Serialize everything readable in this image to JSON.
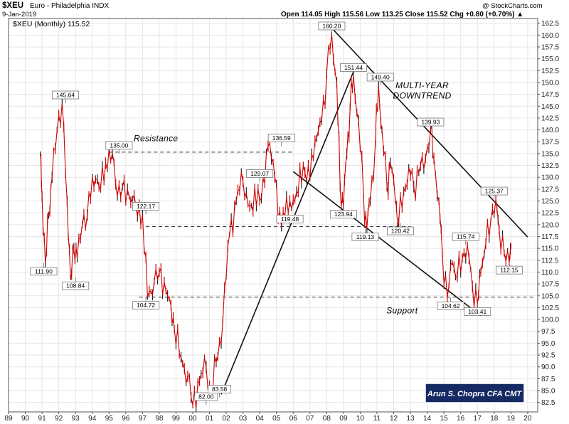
{
  "header": {
    "symbol": "$XEU",
    "name": "Euro - Philadelphia INDX",
    "date": "9-Jan-2019",
    "ohlc": "Open 114.05  High 115.56  Low 113.25  Close 115.52  Chg +0.80 (+0.70%) ▲",
    "copyright": "@ StockCharts.com",
    "legend": "$XEU (Monthly) 115.52"
  },
  "signature": "Arun S. Chopra CFA CMT",
  "chart_data": {
    "type": "line",
    "title": "$XEU Euro - Philadelphia INDX",
    "series": [
      {
        "name": "$XEU (Monthly)",
        "x": [
          1990.9,
          1991.0,
          1991.2,
          1991.4,
          1991.6,
          1991.9,
          1992.2,
          1992.5,
          1992.7,
          1992.9,
          1993.1,
          1993.4,
          1993.7,
          1994.0,
          1994.4,
          1994.8,
          1995.2,
          1995.5,
          1995.8,
          1996.2,
          1996.6,
          1997.0,
          1997.3,
          1997.7,
          1998.0,
          1998.4,
          1998.7,
          1998.9,
          1999.3,
          1999.7,
          2000.0,
          2000.4,
          2000.8,
          2001.1,
          2001.4,
          2001.8,
          2002.2,
          2002.6,
          2003.0,
          2003.5,
          2004.0,
          2004.5,
          2004.9,
          2005.3,
          2005.8,
          2006.2,
          2006.7,
          2007.2,
          2007.7,
          2008.0,
          2008.3,
          2008.6,
          2008.8,
          2009.0,
          2009.2,
          2009.4,
          2009.6,
          2009.9,
          2010.2,
          2010.4,
          2010.6,
          2010.9,
          2011.1,
          2011.3,
          2011.6,
          2011.8,
          2012.1,
          2012.3,
          2012.6,
          2012.9,
          2013.2,
          2013.5,
          2013.9,
          2014.2,
          2014.4,
          2014.7,
          2014.9,
          2015.2,
          2015.5,
          2015.8,
          2016.1,
          2016.4,
          2016.7,
          2017.0,
          2017.2,
          2017.5,
          2017.8,
          2018.1,
          2018.3,
          2018.6,
          2018.9,
          2019.0
        ],
        "values": [
          135.0,
          126.0,
          111.9,
          122.0,
          130.0,
          140.0,
          145.64,
          125.0,
          108.84,
          115.0,
          113.0,
          120.0,
          122.0,
          130.0,
          128.0,
          133.0,
          135.0,
          126.0,
          128.0,
          126.0,
          124.0,
          122.17,
          104.72,
          108.0,
          110.0,
          106.0,
          103.0,
          98.0,
          92.0,
          88.0,
          82.0,
          87.0,
          90.0,
          83.58,
          91.0,
          100.0,
          118.0,
          125.0,
          129.07,
          124.0,
          125.0,
          136.59,
          130.0,
          119.48,
          125.0,
          127.0,
          131.0,
          134.0,
          142.0,
          152.0,
          160.2,
          150.0,
          128.0,
          123.94,
          135.0,
          145.0,
          151.44,
          142.0,
          126.0,
          119.13,
          125.0,
          137.0,
          149.4,
          140.0,
          128.0,
          133.0,
          125.0,
          120.42,
          127.0,
          132.0,
          128.0,
          131.0,
          134.0,
          139.93,
          134.0,
          125.0,
          114.0,
          104.62,
          112.0,
          109.0,
          113.0,
          115.74,
          107.0,
          103.41,
          110.0,
          116.0,
          121.0,
          125.37,
          119.0,
          114.0,
          112.15,
          115.52
        ],
        "color": "#cc0000"
      }
    ],
    "peak_labels": [
      {
        "x": 1991.1,
        "y": 111.9,
        "label": "111.90"
      },
      {
        "x": 1992.4,
        "y": 145.64,
        "label": "145.64"
      },
      {
        "x": 1993.0,
        "y": 108.84,
        "label": "108.84"
      },
      {
        "x": 1995.6,
        "y": 135.0,
        "label": "135.00"
      },
      {
        "x": 1997.2,
        "y": 122.17,
        "label": "122.17"
      },
      {
        "x": 1997.2,
        "y": 104.72,
        "label": "104.72"
      },
      {
        "x": 2000.8,
        "y": 82.0,
        "label": "82.00"
      },
      {
        "x": 2001.6,
        "y": 83.58,
        "label": "83.58"
      },
      {
        "x": 2004.0,
        "y": 129.07,
        "label": "129.07"
      },
      {
        "x": 2005.3,
        "y": 136.59,
        "label": "136.59"
      },
      {
        "x": 2005.8,
        "y": 119.48,
        "label": "119.48"
      },
      {
        "x": 2008.3,
        "y": 160.2,
        "label": "160.20"
      },
      {
        "x": 2009.0,
        "y": 123.94,
        "label": "123.94"
      },
      {
        "x": 2009.6,
        "y": 151.44,
        "label": "151.44"
      },
      {
        "x": 2010.3,
        "y": 119.13,
        "label": "119.13"
      },
      {
        "x": 2011.2,
        "y": 149.4,
        "label": "149.40"
      },
      {
        "x": 2012.4,
        "y": 120.42,
        "label": "120.42"
      },
      {
        "x": 2014.2,
        "y": 139.93,
        "label": "139.93"
      },
      {
        "x": 2015.4,
        "y": 104.62,
        "label": "104.62"
      },
      {
        "x": 2016.3,
        "y": 115.74,
        "label": "115.74"
      },
      {
        "x": 2017.0,
        "y": 103.41,
        "label": "103.41"
      },
      {
        "x": 2018.0,
        "y": 125.37,
        "label": "125.37"
      },
      {
        "x": 2018.9,
        "y": 112.15,
        "label": "112.15"
      }
    ],
    "annotations": [
      {
        "text": "Resistance",
        "x": 1997.8,
        "y": 137.6
      },
      {
        "text": "MULTI-YEAR",
        "x": 2013.7,
        "y": 148.8
      },
      {
        "text": "DOWNTREND",
        "x": 2013.7,
        "y": 146.6
      },
      {
        "text": "Support",
        "x": 2012.5,
        "y": 101.3
      }
    ],
    "trendlines": [
      {
        "kind": "solid",
        "x1": 2001.7,
        "y1": 84.2,
        "x2": 2009.6,
        "y2": 152.3
      },
      {
        "kind": "solid",
        "x1": 2008.3,
        "y1": 161.5,
        "x2": 2020.0,
        "y2": 117.4
      },
      {
        "kind": "solid",
        "x1": 2006.0,
        "y1": 131.2,
        "x2": 2017.2,
        "y2": 100.8
      },
      {
        "kind": "dashed",
        "x1": 1995.0,
        "y1": 135.3,
        "x2": 2006.0,
        "y2": 135.3
      },
      {
        "kind": "dashed",
        "x1": 1997.2,
        "y1": 119.6,
        "x2": 2013.0,
        "y2": 119.6
      },
      {
        "kind": "dashed",
        "x1": 1996.8,
        "y1": 104.7,
        "x2": 2020.5,
        "y2": 104.7
      }
    ],
    "x_ticks": [
      "89",
      "90",
      "91",
      "92",
      "93",
      "94",
      "95",
      "96",
      "97",
      "98",
      "99",
      "00",
      "01",
      "02",
      "03",
      "04",
      "05",
      "06",
      "07",
      "08",
      "09",
      "10",
      "11",
      "12",
      "13",
      "14",
      "15",
      "16",
      "17",
      "18",
      "19",
      "20"
    ],
    "y_ticks": [
      "82.5",
      "85.0",
      "87.5",
      "90.0",
      "92.5",
      "95.0",
      "97.5",
      "100.0",
      "102.5",
      "105.0",
      "107.5",
      "110.0",
      "112.5",
      "115.0",
      "117.5",
      "120.0",
      "122.5",
      "125.0",
      "127.5",
      "130.0",
      "132.5",
      "135.0",
      "137.5",
      "140.0",
      "142.5",
      "145.0",
      "147.5",
      "150.0",
      "152.5",
      "155.0",
      "157.5",
      "160.0",
      "162.5"
    ],
    "xlim": [
      1989,
      2020.6
    ],
    "ylim": [
      80.5,
      163.5
    ],
    "grid": true
  }
}
